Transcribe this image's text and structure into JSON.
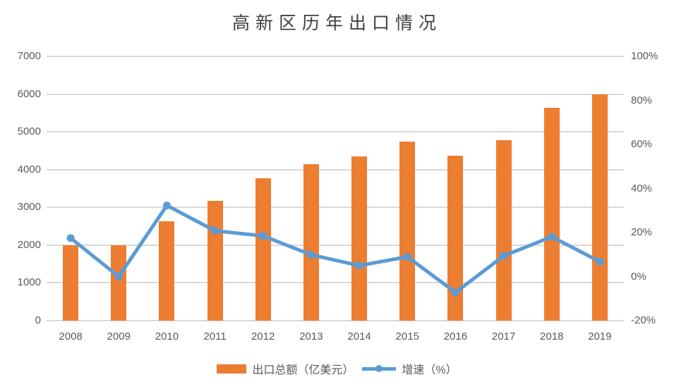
{
  "chart_data": {
    "type": "combo-bar-line",
    "title": "高新区历年出口情况",
    "categories": [
      "2008",
      "2009",
      "2010",
      "2011",
      "2012",
      "2013",
      "2014",
      "2015",
      "2016",
      "2017",
      "2018",
      "2019"
    ],
    "series": [
      {
        "name": "出口总额（亿美元）",
        "type": "bar",
        "axis": "left",
        "color": "#ED7D31",
        "values": [
          2000,
          2000,
          2640,
          3180,
          3765,
          4140,
          4345,
          4740,
          4370,
          4780,
          5640,
          5995
        ]
      },
      {
        "name": "增速（%）",
        "type": "line",
        "axis": "right",
        "color": "#5B9BD5",
        "values": [
          17.5,
          0,
          32.3,
          20.8,
          18.5,
          9.9,
          5.0,
          9.0,
          -7.2,
          9.4,
          18.1,
          6.8
        ]
      }
    ],
    "left_axis": {
      "min": 0,
      "max": 7000,
      "step": 1000,
      "ticks": [
        "7000",
        "6000",
        "5000",
        "4000",
        "3000",
        "2000",
        "1000",
        "0"
      ]
    },
    "right_axis": {
      "min": -20,
      "max": 100,
      "step": 20,
      "ticks": [
        "100%",
        "80%",
        "60%",
        "40%",
        "20%",
        "0%",
        "-20%"
      ]
    },
    "grid": true,
    "legend_position": "bottom",
    "colors": {
      "background": "#FFFFFF",
      "gridline": "#D9D9D9",
      "axis_text": "#595959",
      "title_text": "#3F3F3F",
      "bar": "#ED7D31",
      "line": "#5B9BD5"
    }
  }
}
